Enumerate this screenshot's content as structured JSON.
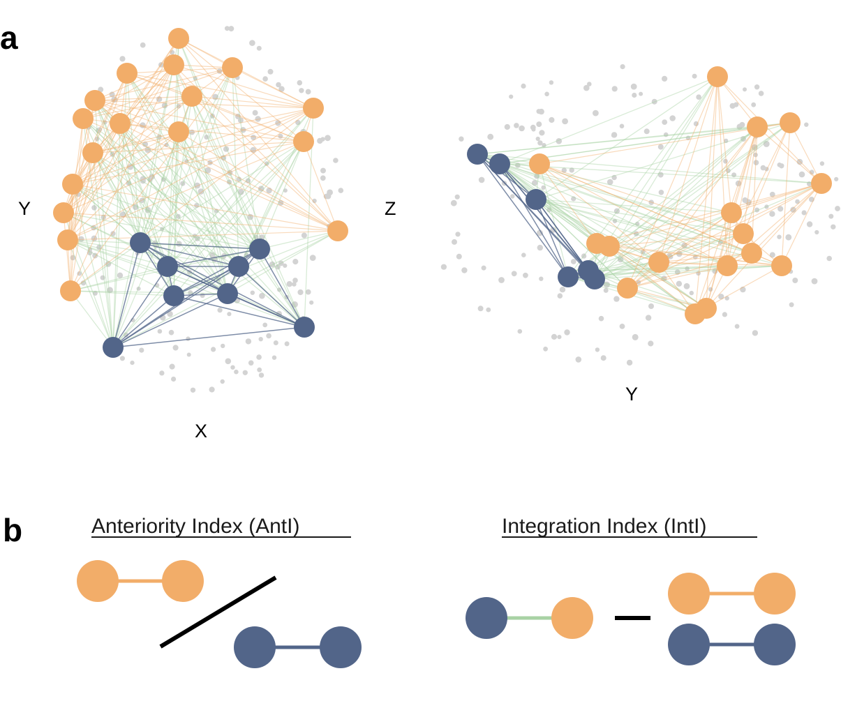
{
  "panel_a": {
    "letter": "a",
    "left_view": {
      "horizontal_axis": "X",
      "vertical_axis": "Y"
    },
    "right_view": {
      "horizontal_axis": "Y",
      "vertical_axis": "Z"
    }
  },
  "panel_b": {
    "letter": "b",
    "anteriority": {
      "title": "Anteriority Index (AntI)",
      "operator": "division"
    },
    "integration": {
      "title": "Integration Index (IntI)",
      "operator": "subtraction"
    }
  },
  "colors": {
    "anterior_node": "#F2AD69",
    "posterior_node": "#526589",
    "anterior_edge": "#F2AD69",
    "posterior_edge": "#526589",
    "cross_edge": "#A8D2A4",
    "background_node": "#D3D3D3"
  }
}
